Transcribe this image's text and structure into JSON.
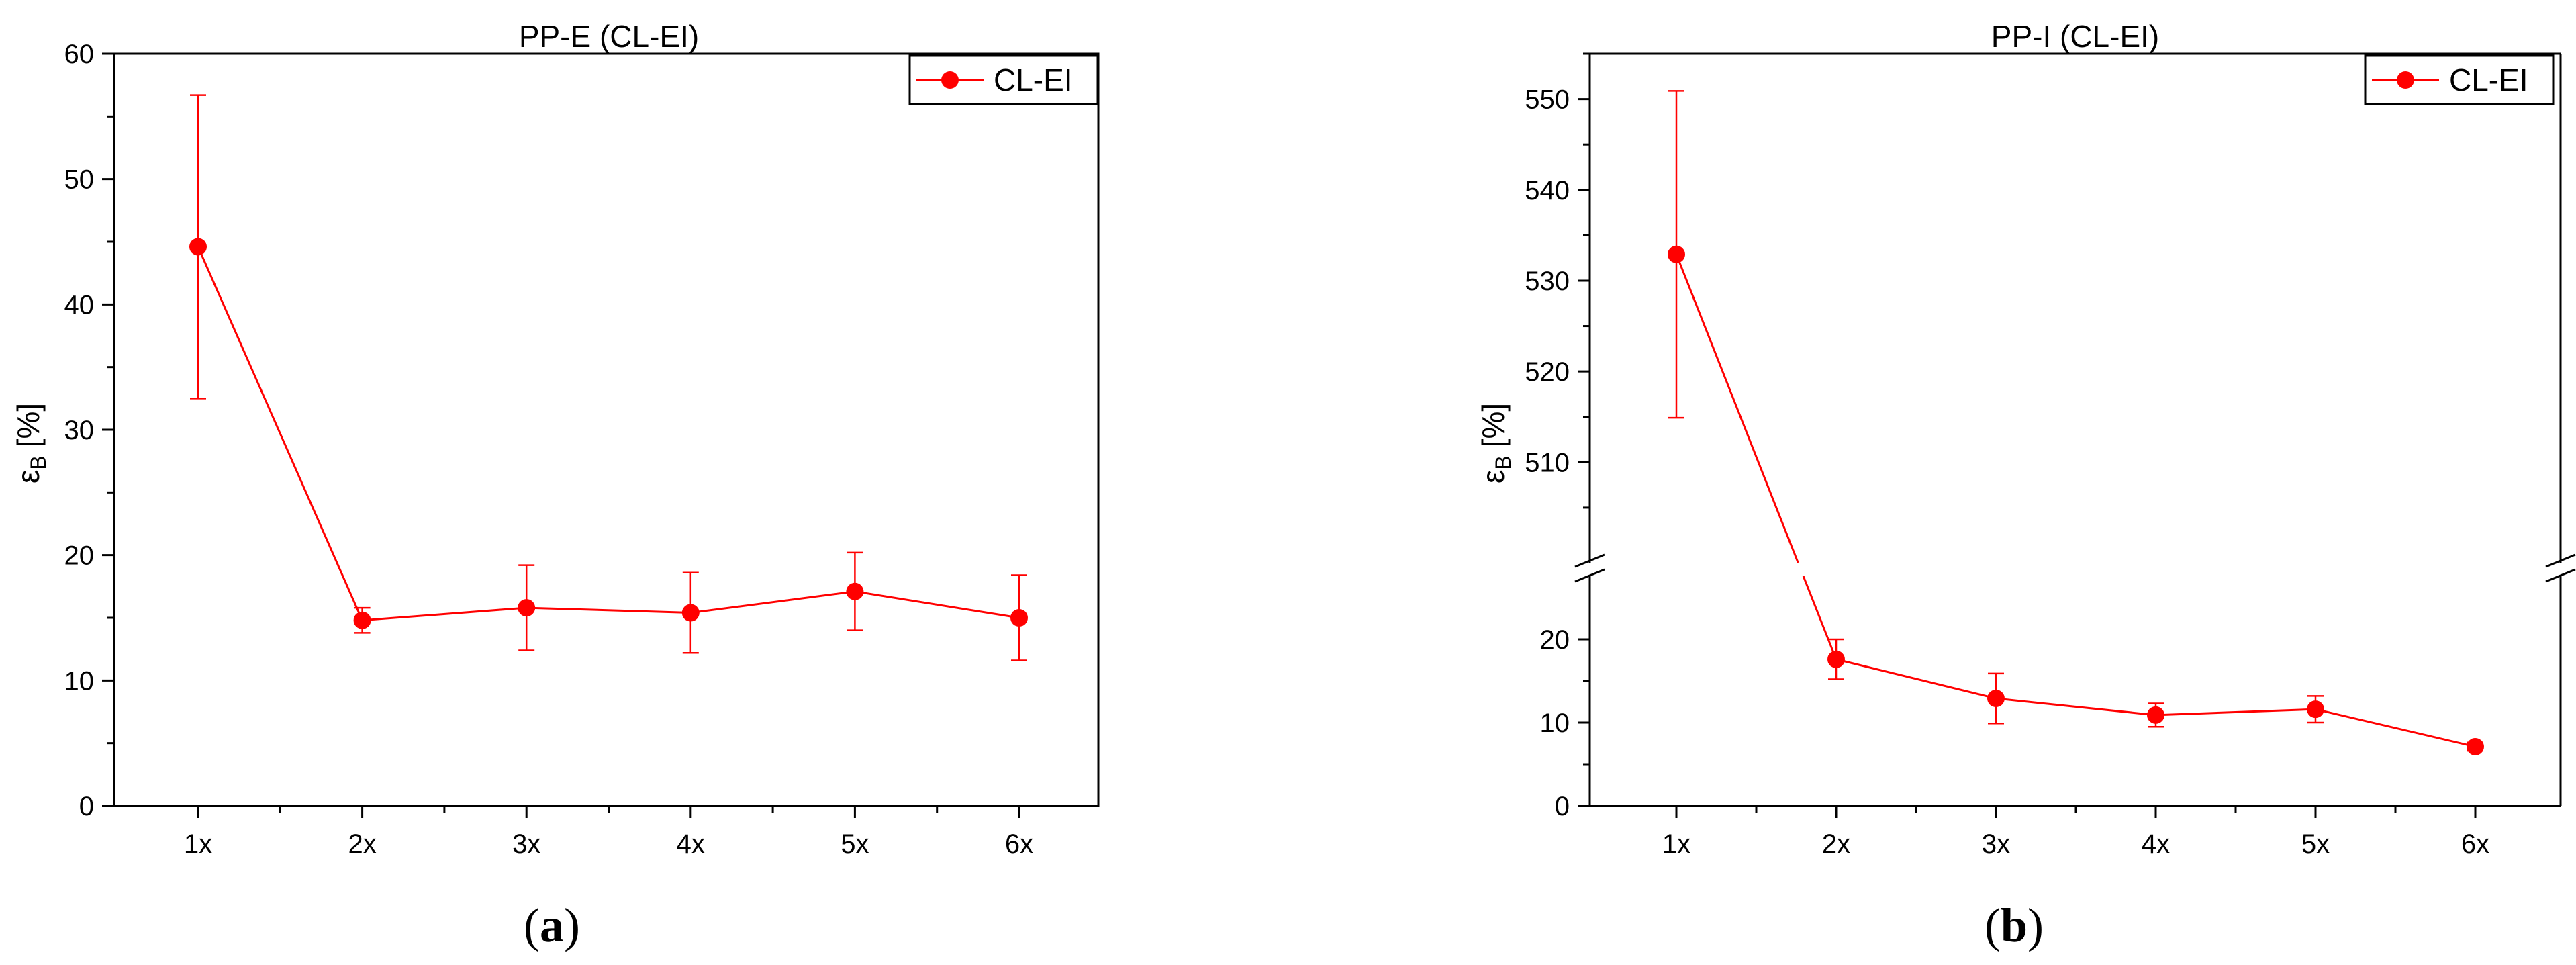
{
  "chart_data": [
    {
      "type": "line",
      "title": "PP-E (CL-EI)",
      "ylabel_main": "ε",
      "ylabel_sub": "B",
      "ylabel_unit": "[%]",
      "categories": [
        "1x",
        "2x",
        "3x",
        "4x",
        "5x",
        "6x"
      ],
      "ylim": [
        0,
        60
      ],
      "yticks": [
        0,
        10,
        20,
        30,
        40,
        50,
        60
      ],
      "grid": false,
      "legend_position": "top-right",
      "series": [
        {
          "name": "CL-EI",
          "color": "#ff0000",
          "values": [
            44.6,
            14.8,
            15.8,
            15.4,
            17.1,
            15.0
          ],
          "error": [
            12.1,
            1.0,
            3.4,
            3.2,
            3.1,
            3.4
          ]
        }
      ],
      "panel_label": "a"
    },
    {
      "type": "line",
      "title": "PP-I (CL-EI)",
      "ylabel_main": "ε",
      "ylabel_sub": "B",
      "ylabel_unit": "[%]",
      "categories": [
        "1x",
        "2x",
        "3x",
        "4x",
        "5x",
        "6x"
      ],
      "axis_break": true,
      "ylim_lower": [
        0,
        25
      ],
      "ylim_upper": [
        501,
        555
      ],
      "yticks_lower": [
        0,
        10,
        20
      ],
      "yticks_upper": [
        510,
        520,
        530,
        540,
        550
      ],
      "grid": false,
      "legend_position": "top-right",
      "series": [
        {
          "name": "CL-EI",
          "color": "#ff0000",
          "values": [
            532.9,
            17.6,
            12.9,
            10.9,
            11.6,
            7.1
          ],
          "error": [
            18.0,
            2.4,
            3.0,
            1.4,
            1.6,
            0.5
          ]
        }
      ],
      "panel_label": "b"
    }
  ]
}
